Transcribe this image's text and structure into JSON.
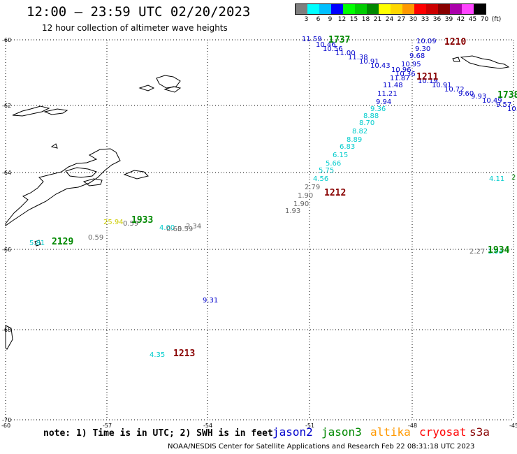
{
  "title": "12:00 – 23:59 UTC 02/20/2023",
  "subtitle": "12 hour collection of altimeter wave heights",
  "legend": {
    "unit_label": "(ft)",
    "bins": [
      {
        "label": "3",
        "color": "#7f7f7f"
      },
      {
        "label": "6",
        "color": "#00ffff"
      },
      {
        "label": "9",
        "color": "#00bfff"
      },
      {
        "label": "12",
        "color": "#0000ff"
      },
      {
        "label": "15",
        "color": "#00ff00"
      },
      {
        "label": "18",
        "color": "#00cc00"
      },
      {
        "label": "21",
        "color": "#008800"
      },
      {
        "label": "24",
        "color": "#ffff00"
      },
      {
        "label": "27",
        "color": "#ffd700"
      },
      {
        "label": "30",
        "color": "#ff9900"
      },
      {
        "label": "33",
        "color": "#ff0000"
      },
      {
        "label": "36",
        "color": "#cc0000"
      },
      {
        "label": "39",
        "color": "#880000"
      },
      {
        "label": "42",
        "color": "#aa00aa"
      },
      {
        "label": "45",
        "color": "#ff44ff"
      },
      {
        "label": "70",
        "color": "#000000"
      }
    ]
  },
  "map": {
    "lat_labels": [
      "-60",
      "-62",
      "-64",
      "-66",
      "-68",
      "-70"
    ],
    "lon_labels": [
      "-60",
      "-57",
      "-54",
      "-51",
      "-48",
      "-45"
    ]
  },
  "colors": {
    "grey": "#666666",
    "cyan": "#00cccc",
    "blue": "#0000cc",
    "green": "#008800",
    "yellow": "#cccc00",
    "red": "#880000",
    "orange": "#ff9900",
    "brightred": "#ff0000",
    "darkred": "#880000",
    "coast": "#000000",
    "grid": "#000000"
  },
  "observations": [
    {
      "v": "11.59",
      "c": "blue"
    },
    {
      "v": "10.46",
      "c": "blue"
    },
    {
      "v": "10.56",
      "c": "blue"
    },
    {
      "v": "11.00",
      "c": "blue"
    },
    {
      "v": "11.38",
      "c": "blue"
    },
    {
      "v": "10.91",
      "c": "blue"
    },
    {
      "v": "10.43",
      "c": "blue"
    },
    {
      "v": "10.95",
      "c": "blue"
    },
    {
      "v": "10.96",
      "c": "blue"
    },
    {
      "v": "10.36",
      "c": "blue"
    },
    {
      "v": "11.87",
      "c": "blue"
    },
    {
      "v": "11.48",
      "c": "blue"
    },
    {
      "v": "11.21",
      "c": "blue"
    },
    {
      "v": "9.94",
      "c": "blue"
    },
    {
      "v": "10.09",
      "c": "blue"
    },
    {
      "v": "9.30",
      "c": "blue"
    },
    {
      "v": "9.68",
      "c": "blue"
    },
    {
      "v": "10.19",
      "c": "blue"
    },
    {
      "v": "10.91",
      "c": "blue"
    },
    {
      "v": "10.72",
      "c": "blue"
    },
    {
      "v": "9.60",
      "c": "blue"
    },
    {
      "v": "9.93",
      "c": "blue"
    },
    {
      "v": "10.49",
      "c": "blue"
    },
    {
      "v": "9.57",
      "c": "blue"
    },
    {
      "v": "10.",
      "c": "blue"
    },
    {
      "v": "9.36",
      "c": "cyan"
    },
    {
      "v": "8.88",
      "c": "cyan"
    },
    {
      "v": "8.70",
      "c": "cyan"
    },
    {
      "v": "8.82",
      "c": "cyan"
    },
    {
      "v": "8.89",
      "c": "cyan"
    },
    {
      "v": "6.83",
      "c": "cyan"
    },
    {
      "v": "6.15",
      "c": "cyan"
    },
    {
      "v": "5.66",
      "c": "cyan"
    },
    {
      "v": "5.75",
      "c": "cyan"
    },
    {
      "v": "4.56",
      "c": "cyan"
    },
    {
      "v": "2.79",
      "c": "grey"
    },
    {
      "v": "1.90",
      "c": "grey"
    },
    {
      "v": "1.90",
      "c": "grey"
    },
    {
      "v": "1.93",
      "c": "grey"
    },
    {
      "v": "25.94",
      "c": "yellow"
    },
    {
      "v": "0.59",
      "c": "grey"
    },
    {
      "v": "4.00",
      "c": "cyan"
    },
    {
      "v": "0.65",
      "c": "grey"
    },
    {
      "v": "0.59",
      "c": "grey"
    },
    {
      "v": "2.34",
      "c": "grey"
    },
    {
      "v": "5.81",
      "c": "cyan"
    },
    {
      "v": "0.59",
      "c": "grey"
    },
    {
      "v": "4.11",
      "c": "cyan"
    },
    {
      "v": "2",
      "c": "green"
    },
    {
      "v": "2.27",
      "c": "grey"
    },
    {
      "v": "1.93",
      "c": "cyan"
    },
    {
      "v": "9.31",
      "c": "blue"
    },
    {
      "v": "4.35",
      "c": "cyan"
    }
  ],
  "pass_times": [
    {
      "t": "1737",
      "c": "green"
    },
    {
      "t": "1210",
      "c": "red"
    },
    {
      "t": "1211",
      "c": "red"
    },
    {
      "t": "1738",
      "c": "green"
    },
    {
      "t": "1212",
      "c": "red"
    },
    {
      "t": "1933",
      "c": "green"
    },
    {
      "t": "2129",
      "c": "green"
    },
    {
      "t": "1934",
      "c": "green"
    },
    {
      "t": "1213",
      "c": "red"
    }
  ],
  "note": "note: 1) Time is in UTC; 2) SWH is in feet",
  "missions": [
    {
      "name": "jason2",
      "color": "#0000cc"
    },
    {
      "name": "jason3",
      "color": "#008800"
    },
    {
      "name": "altika",
      "color": "#ff9900"
    },
    {
      "name": "cryosat",
      "color": "#ff0000"
    },
    {
      "name": "s3a",
      "color": "#880000"
    }
  ],
  "footer": "NOAA/NESDIS Center for Satellite Applications and Research    Feb 22 08:31:18 UTC 2023"
}
